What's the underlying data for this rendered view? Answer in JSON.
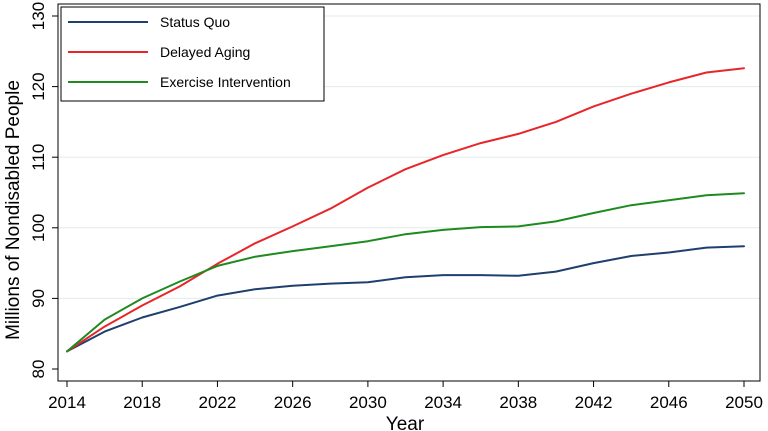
{
  "chart_data": {
    "type": "line",
    "title": "",
    "xlabel": "Year",
    "ylabel": "Millions of Nondisabled People",
    "xlim": [
      2014,
      2050
    ],
    "ylim": [
      80,
      130
    ],
    "xticks": [
      2014,
      2018,
      2022,
      2026,
      2030,
      2034,
      2038,
      2042,
      2046,
      2050
    ],
    "yticks": [
      80,
      90,
      100,
      110,
      120,
      130
    ],
    "grid": true,
    "legend_position": "top-left",
    "x": [
      2014,
      2016,
      2018,
      2020,
      2022,
      2024,
      2026,
      2028,
      2030,
      2032,
      2034,
      2036,
      2038,
      2040,
      2042,
      2044,
      2046,
      2048,
      2050
    ],
    "series": [
      {
        "name": "Status Quo",
        "color": "#1f3f6e",
        "values": [
          82.5,
          85.3,
          87.3,
          88.8,
          90.4,
          91.3,
          91.8,
          92.1,
          92.3,
          93.0,
          93.3,
          93.3,
          93.2,
          93.8,
          95.0,
          96.0,
          96.5,
          97.2,
          97.4
        ]
      },
      {
        "name": "Delayed Aging",
        "color": "#e8262a",
        "values": [
          82.5,
          86.0,
          89.0,
          91.7,
          94.9,
          97.8,
          100.2,
          102.7,
          105.7,
          108.3,
          110.3,
          112.0,
          113.3,
          115.0,
          117.2,
          119.0,
          120.6,
          122.0,
          122.6
        ]
      },
      {
        "name": "Exercise Intervention",
        "color": "#1f8a1f",
        "values": [
          82.5,
          87.0,
          90.0,
          92.4,
          94.6,
          95.9,
          96.7,
          97.4,
          98.1,
          99.1,
          99.7,
          100.1,
          100.2,
          100.9,
          102.1,
          103.2,
          103.9,
          104.6,
          104.9
        ]
      }
    ]
  }
}
